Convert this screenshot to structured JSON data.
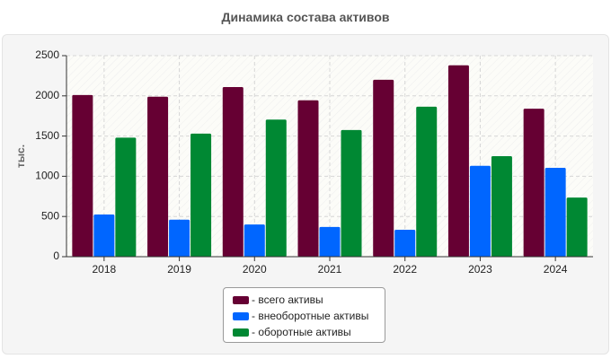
{
  "chart_data": {
    "type": "bar",
    "title": "Динамика состава активов",
    "ylabel": "тыс.",
    "xlabel": "",
    "categories": [
      "2018",
      "2019",
      "2020",
      "2021",
      "2022",
      "2023",
      "2024"
    ],
    "ylim": [
      0,
      2500
    ],
    "yticks": [
      0,
      500,
      1000,
      1500,
      2000,
      2500
    ],
    "grid": true,
    "legend_position": "bottom",
    "series": [
      {
        "name": "- всего активы",
        "color": "#660033",
        "values": [
          2010,
          1990,
          2110,
          1945,
          2200,
          2380,
          1840
        ]
      },
      {
        "name": "- внеоборотные активы",
        "color": "#0066ff",
        "values": [
          525,
          460,
          400,
          370,
          335,
          1130,
          1105
        ]
      },
      {
        "name": "- оборотные активы",
        "color": "#008833",
        "values": [
          1480,
          1530,
          1705,
          1575,
          1865,
          1250,
          735
        ]
      }
    ]
  }
}
